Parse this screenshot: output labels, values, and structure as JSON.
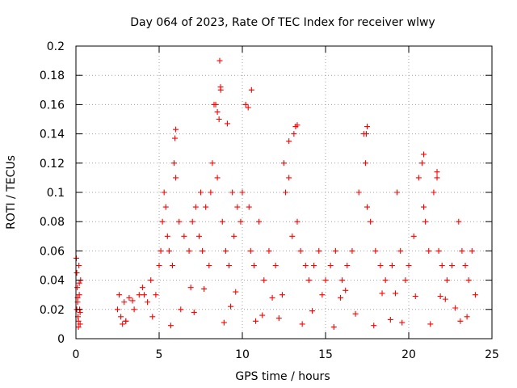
{
  "chart_data": {
    "type": "scatter",
    "title": "Day 064 of 2023, Rate Of TEC Index for receiver wlwy",
    "xlabel": "GPS time / hours",
    "ylabel": "ROTI / TECUs",
    "xlim": [
      0,
      25
    ],
    "ylim": [
      0,
      0.2
    ],
    "x_ticks": [
      "0",
      "5",
      "10",
      "15",
      "20",
      "25"
    ],
    "y_ticks": [
      "0",
      "0.02",
      "0.04",
      "0.06",
      "0.08",
      "0.1",
      "0.12",
      "0.14",
      "0.16",
      "0.18",
      "0.2"
    ],
    "grid": true,
    "marker": "+",
    "series_color": "#ff0000",
    "series": [
      {
        "x": [
          0.02,
          0.05,
          0.08,
          0.1,
          0.12,
          0.15,
          0.18,
          0.2,
          0.22,
          0.25,
          0.28,
          0.05,
          0.1,
          0.15,
          0.2,
          0.25,
          2.5,
          2.6,
          2.7,
          2.9,
          3.0,
          3.2,
          3.5,
          3.8,
          4.0,
          4.3,
          4.5,
          4.8,
          5.0,
          5.1,
          5.2,
          5.3,
          5.4,
          5.5,
          5.6,
          5.8,
          5.9,
          6.0,
          6.2,
          6.5,
          6.8,
          7.0,
          7.2,
          7.4,
          7.5,
          7.6,
          7.8,
          8.0,
          8.1,
          8.2,
          8.3,
          8.5,
          8.6,
          8.7,
          8.8,
          9.0,
          9.2,
          9.4,
          9.5,
          9.7,
          9.9,
          10.0,
          10.2,
          10.4,
          10.5,
          10.7,
          11.0,
          11.3,
          11.6,
          12.0,
          12.5,
          12.6,
          12.8,
          13.0,
          13.1,
          13.3,
          13.5,
          13.8,
          14.0,
          14.3,
          14.6,
          15.0,
          15.3,
          15.6,
          16.0,
          16.3,
          16.6,
          17.0,
          17.3,
          17.4,
          17.5,
          17.7,
          18.0,
          18.3,
          18.6,
          19.0,
          19.3,
          19.5,
          19.8,
          20.0,
          20.3,
          20.6,
          20.8,
          20.9,
          21.0,
          21.2,
          21.5,
          21.7,
          21.8,
          22.0,
          22.3,
          22.6,
          23.0,
          23.2,
          23.4,
          23.6,
          23.8,
          24.0,
          8.64,
          8.69,
          9.1,
          10.55,
          10.35,
          8.4,
          8.5,
          6.0,
          5.95,
          13.2,
          13.3,
          12.8,
          17.5,
          17.45,
          20.9,
          21.7,
          3.0,
          4.6,
          6.3,
          7.1,
          9.3,
          11.2,
          12.2,
          14.2,
          16.8,
          18.9,
          22.8,
          23.5,
          2.8,
          5.7,
          8.9,
          10.8,
          13.6,
          15.5,
          17.9,
          19.6,
          21.3,
          23.1,
          4.1,
          6.9,
          9.6,
          11.8,
          14.8,
          16.2,
          18.4,
          20.4,
          22.2,
          3.4,
          7.7,
          12.4,
          15.9,
          19.2,
          21.9
        ],
        "y": [
          0.055,
          0.045,
          0.035,
          0.025,
          0.015,
          0.008,
          0.05,
          0.03,
          0.02,
          0.01,
          0.04,
          0.02,
          0.028,
          0.012,
          0.038,
          0.018,
          0.02,
          0.03,
          0.015,
          0.025,
          0.012,
          0.028,
          0.02,
          0.03,
          0.035,
          0.025,
          0.04,
          0.03,
          0.05,
          0.06,
          0.08,
          0.1,
          0.09,
          0.07,
          0.06,
          0.05,
          0.12,
          0.11,
          0.08,
          0.07,
          0.06,
          0.08,
          0.09,
          0.07,
          0.1,
          0.06,
          0.09,
          0.05,
          0.1,
          0.12,
          0.16,
          0.11,
          0.15,
          0.17,
          0.08,
          0.06,
          0.05,
          0.1,
          0.07,
          0.09,
          0.08,
          0.1,
          0.16,
          0.09,
          0.06,
          0.05,
          0.08,
          0.04,
          0.06,
          0.05,
          0.12,
          0.1,
          0.11,
          0.07,
          0.14,
          0.08,
          0.06,
          0.05,
          0.04,
          0.05,
          0.06,
          0.04,
          0.05,
          0.06,
          0.04,
          0.05,
          0.06,
          0.1,
          0.14,
          0.12,
          0.09,
          0.08,
          0.06,
          0.05,
          0.04,
          0.05,
          0.1,
          0.06,
          0.04,
          0.05,
          0.07,
          0.11,
          0.12,
          0.09,
          0.08,
          0.06,
          0.1,
          0.11,
          0.06,
          0.05,
          0.04,
          0.05,
          0.08,
          0.06,
          0.05,
          0.04,
          0.06,
          0.03,
          0.19,
          0.172,
          0.147,
          0.17,
          0.158,
          0.16,
          0.155,
          0.143,
          0.137,
          0.145,
          0.146,
          0.135,
          0.145,
          0.14,
          0.126,
          0.114,
          0.012,
          0.015,
          0.02,
          0.018,
          0.022,
          0.016,
          0.014,
          0.019,
          0.017,
          0.013,
          0.021,
          0.015,
          0.01,
          0.009,
          0.011,
          0.012,
          0.01,
          0.008,
          0.009,
          0.011,
          0.01,
          0.012,
          0.03,
          0.035,
          0.032,
          0.028,
          0.03,
          0.033,
          0.031,
          0.029,
          0.027,
          0.026,
          0.034,
          0.03,
          0.028,
          0.031,
          0.029
        ]
      }
    ]
  }
}
